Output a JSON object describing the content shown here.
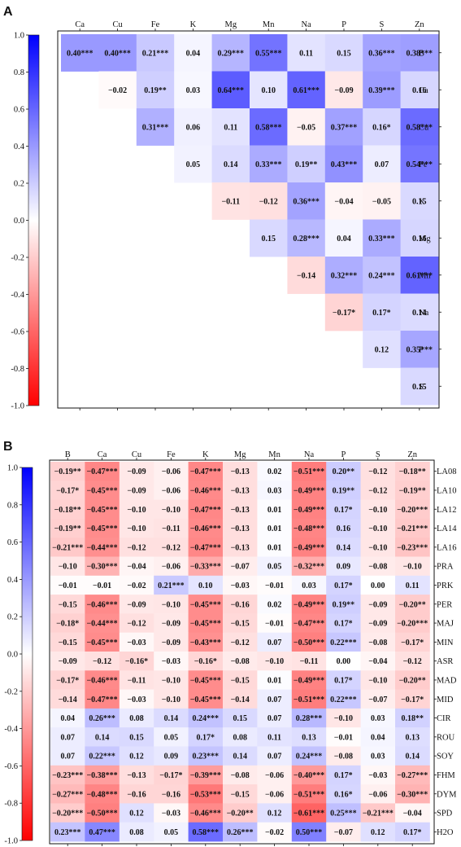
{
  "chart_data": [
    {
      "panel": "A",
      "type": "heatmap",
      "shape": "upper-triangle",
      "columns": [
        "Ca",
        "Cu",
        "Fe",
        "K",
        "Mg",
        "Mn",
        "Na",
        "P",
        "S",
        "Zn"
      ],
      "rows": [
        "B",
        "Ca",
        "Cu",
        "Fe",
        "K",
        "Mg",
        "Mn",
        "Na",
        "P",
        "S"
      ],
      "colorbar": {
        "min": -1.0,
        "max": 1.0,
        "ticks": [
          "1.0",
          "0.8",
          "0.6",
          "0.4",
          "0.2",
          "0.0",
          "-0.2",
          "-0.4",
          "-0.6",
          "-0.8",
          "-1.0"
        ],
        "colors": {
          "low": "#ff0000",
          "mid": "#ffffff",
          "high": "#0000ff"
        }
      },
      "values": [
        [
          0.4,
          0.4,
          0.21,
          0.04,
          0.29,
          0.55,
          0.11,
          0.15,
          0.36,
          0.38
        ],
        [
          null,
          -0.02,
          0.19,
          0.03,
          0.64,
          0.1,
          0.61,
          -0.09,
          0.39,
          0.16
        ],
        [
          null,
          null,
          0.31,
          0.06,
          0.11,
          0.58,
          -0.05,
          0.37,
          0.16,
          0.58
        ],
        [
          null,
          null,
          null,
          0.05,
          0.14,
          0.33,
          0.19,
          0.43,
          0.07,
          0.54
        ],
        [
          null,
          null,
          null,
          null,
          -0.11,
          -0.12,
          0.36,
          -0.04,
          -0.05,
          0.15
        ],
        [
          null,
          null,
          null,
          null,
          null,
          0.15,
          0.28,
          0.04,
          0.33,
          0.16
        ],
        [
          null,
          null,
          null,
          null,
          null,
          null,
          -0.14,
          0.32,
          0.24,
          0.61
        ],
        [
          null,
          null,
          null,
          null,
          null,
          null,
          null,
          -0.17,
          0.17,
          0.14
        ],
        [
          null,
          null,
          null,
          null,
          null,
          null,
          null,
          null,
          0.12,
          0.35
        ],
        [
          null,
          null,
          null,
          null,
          null,
          null,
          null,
          null,
          null,
          0.15
        ]
      ],
      "labels": [
        [
          "0.40***",
          "0.40***",
          "0.21***",
          "0.04",
          "0.29***",
          "0.55***",
          "0.11",
          "0.15",
          "0.36***",
          "0.38***"
        ],
        [
          "",
          "−0.02",
          "0.19**",
          "0.03",
          "0.64***",
          "0.10",
          "0.61***",
          "−0.09",
          "0.39***",
          "0.16"
        ],
        [
          "",
          "",
          "0.31***",
          "0.06",
          "0.11",
          "0.58***",
          "−0.05",
          "0.37***",
          "0.16*",
          "0.58***"
        ],
        [
          "",
          "",
          "",
          "0.05",
          "0.14",
          "0.33***",
          "0.19**",
          "0.43***",
          "0.07",
          "0.54***"
        ],
        [
          "",
          "",
          "",
          "",
          "−0.11",
          "−0.12",
          "0.36***",
          "−0.04",
          "−0.05",
          "0.15"
        ],
        [
          "",
          "",
          "",
          "",
          "",
          "0.15",
          "0.28***",
          "0.04",
          "0.33***",
          "0.16"
        ],
        [
          "",
          "",
          "",
          "",
          "",
          "",
          "−0.14",
          "0.32***",
          "0.24***",
          "0.61***"
        ],
        [
          "",
          "",
          "",
          "",
          "",
          "",
          "",
          "−0.17*",
          "0.17*",
          "0.14"
        ],
        [
          "",
          "",
          "",
          "",
          "",
          "",
          "",
          "",
          "0.12",
          "0.35***"
        ],
        [
          "",
          "",
          "",
          "",
          "",
          "",
          "",
          "",
          "",
          "0.15"
        ]
      ]
    },
    {
      "panel": "B",
      "type": "heatmap",
      "shape": "full",
      "columns": [
        "B",
        "Ca",
        "Cu",
        "Fe",
        "K",
        "Mg",
        "Mn",
        "Na",
        "P",
        "S",
        "Zn"
      ],
      "rows": [
        "LA08",
        "LA10",
        "LA12",
        "LA14",
        "LA16",
        "PRA",
        "PRK",
        "PER",
        "MAJ",
        "MIN",
        "ASR",
        "MAD",
        "MID",
        "CIR",
        "ROU",
        "SOY",
        "FHM",
        "DYM",
        "SPD",
        "H2O"
      ],
      "colorbar": {
        "min": -1.0,
        "max": 1.0,
        "ticks": [
          "1.0",
          "0.8",
          "0.6",
          "0.4",
          "0.2",
          "0.0",
          "-0.2",
          "-0.4",
          "-0.6",
          "-0.8",
          "-1.0"
        ],
        "colors": {
          "low": "#ff0000",
          "mid": "#ffffff",
          "high": "#0000ff"
        }
      },
      "values": [
        [
          -0.19,
          -0.47,
          -0.09,
          -0.06,
          -0.47,
          -0.13,
          0.02,
          -0.51,
          0.2,
          -0.12,
          -0.18
        ],
        [
          -0.17,
          -0.45,
          -0.09,
          -0.06,
          -0.46,
          -0.13,
          0.03,
          -0.49,
          0.19,
          -0.12,
          -0.19
        ],
        [
          -0.18,
          -0.45,
          -0.1,
          -0.1,
          -0.47,
          -0.13,
          0.01,
          -0.49,
          0.17,
          -0.1,
          -0.2
        ],
        [
          -0.19,
          -0.45,
          -0.1,
          -0.11,
          -0.46,
          -0.13,
          0.01,
          -0.48,
          0.16,
          -0.1,
          -0.21
        ],
        [
          -0.21,
          -0.44,
          -0.12,
          -0.12,
          -0.47,
          -0.13,
          0.01,
          -0.49,
          0.14,
          -0.1,
          -0.23
        ],
        [
          -0.1,
          -0.3,
          -0.04,
          -0.06,
          -0.33,
          -0.07,
          0.05,
          -0.32,
          0.09,
          -0.08,
          -0.1
        ],
        [
          -0.01,
          -0.01,
          -0.02,
          0.21,
          0.1,
          -0.03,
          -0.01,
          0.03,
          0.17,
          0.0,
          0.11
        ],
        [
          -0.15,
          -0.46,
          -0.09,
          -0.1,
          -0.45,
          -0.16,
          0.02,
          -0.49,
          0.19,
          -0.09,
          -0.2
        ],
        [
          -0.18,
          -0.44,
          -0.12,
          -0.09,
          -0.45,
          -0.15,
          -0.01,
          -0.47,
          0.17,
          -0.09,
          -0.2
        ],
        [
          -0.15,
          -0.45,
          -0.03,
          -0.09,
          -0.43,
          -0.12,
          0.07,
          -0.5,
          0.22,
          -0.08,
          -0.17
        ],
        [
          -0.09,
          -0.12,
          -0.16,
          -0.03,
          -0.16,
          -0.08,
          -0.1,
          -0.11,
          0.0,
          -0.04,
          -0.12
        ],
        [
          -0.17,
          -0.46,
          -0.11,
          -0.1,
          -0.45,
          -0.15,
          0.01,
          -0.49,
          0.17,
          -0.1,
          -0.2
        ],
        [
          -0.14,
          -0.47,
          -0.03,
          -0.1,
          -0.45,
          -0.14,
          0.07,
          -0.51,
          0.22,
          -0.07,
          -0.17
        ],
        [
          0.04,
          0.26,
          0.08,
          0.14,
          0.24,
          0.15,
          0.07,
          0.28,
          -0.1,
          0.03,
          0.18
        ],
        [
          0.07,
          0.14,
          0.15,
          0.05,
          0.17,
          0.08,
          0.11,
          0.13,
          -0.01,
          0.04,
          0.13
        ],
        [
          0.07,
          0.22,
          0.12,
          0.09,
          0.23,
          0.14,
          0.07,
          0.24,
          -0.08,
          0.03,
          0.14
        ],
        [
          -0.23,
          -0.38,
          -0.13,
          -0.17,
          -0.39,
          -0.08,
          -0.06,
          -0.4,
          0.17,
          -0.03,
          -0.27
        ],
        [
          -0.27,
          -0.48,
          -0.16,
          -0.16,
          -0.53,
          -0.15,
          -0.06,
          -0.51,
          0.16,
          -0.06,
          -0.3
        ],
        [
          -0.2,
          -0.5,
          0.12,
          -0.03,
          -0.46,
          -0.2,
          0.12,
          -0.61,
          0.25,
          -0.21,
          -0.04
        ],
        [
          0.23,
          0.47,
          0.08,
          0.05,
          0.58,
          0.26,
          -0.02,
          0.5,
          -0.07,
          0.12,
          0.17
        ]
      ],
      "labels": [
        [
          "−0.19**",
          "−0.47***",
          "−0.09",
          "−0.06",
          "−0.47***",
          "−0.13",
          "0.02",
          "−0.51***",
          "0.20**",
          "−0.12",
          "−0.18**"
        ],
        [
          "−0.17*",
          "−0.45***",
          "−0.09",
          "−0.06",
          "−0.46***",
          "−0.13",
          "0.03",
          "−0.49***",
          "0.19**",
          "−0.12",
          "−0.19**"
        ],
        [
          "−0.18**",
          "−0.45***",
          "−0.10",
          "−0.10",
          "−0.47***",
          "−0.13",
          "0.01",
          "−0.49***",
          "0.17*",
          "−0.10",
          "−0.20***"
        ],
        [
          "−0.19**",
          "−0.45***",
          "−0.10",
          "−0.11",
          "−0.46***",
          "−0.13",
          "0.01",
          "−0.48***",
          "0.16",
          "−0.10",
          "−0.21***"
        ],
        [
          "−0.21***",
          "−0.44***",
          "−0.12",
          "−0.12",
          "−0.47***",
          "−0.13",
          "0.01",
          "−0.49***",
          "0.14",
          "−0.10",
          "−0.23***"
        ],
        [
          "−0.10",
          "−0.30***",
          "−0.04",
          "−0.06",
          "−0.33***",
          "−0.07",
          "0.05",
          "−0.32***",
          "0.09",
          "−0.08",
          "−0.10"
        ],
        [
          "−0.01",
          "−0.01",
          "−0.02",
          "0.21***",
          "0.10",
          "−0.03",
          "−0.01",
          "0.03",
          "0.17*",
          "0.00",
          "0.11"
        ],
        [
          "−0.15",
          "−0.46***",
          "−0.09",
          "−0.10",
          "−0.45***",
          "−0.16",
          "0.02",
          "−0.49***",
          "0.19**",
          "−0.09",
          "−0.20**"
        ],
        [
          "−0.18*",
          "−0.44***",
          "−0.12",
          "−0.09",
          "−0.45***",
          "−0.15",
          "−0.01",
          "−0.47***",
          "0.17*",
          "−0.09",
          "−0.20***"
        ],
        [
          "−0.15",
          "−0.45***",
          "−0.03",
          "−0.09",
          "−0.43***",
          "−0.12",
          "0.07",
          "−0.50***",
          "0.22***",
          "−0.08",
          "−0.17*"
        ],
        [
          "−0.09",
          "−0.12",
          "−0.16*",
          "−0.03",
          "−0.16*",
          "−0.08",
          "−0.10",
          "−0.11",
          "0.00",
          "−0.04",
          "−0.12"
        ],
        [
          "−0.17*",
          "−0.46***",
          "−0.11",
          "−0.10",
          "−0.45***",
          "−0.15",
          "0.01",
          "−0.49***",
          "0.17*",
          "−0.10",
          "−0.20**"
        ],
        [
          "−0.14",
          "−0.47***",
          "−0.03",
          "−0.10",
          "−0.45***",
          "−0.14",
          "0.07",
          "−0.51***",
          "0.22***",
          "−0.07",
          "−0.17*"
        ],
        [
          "0.04",
          "0.26***",
          "0.08",
          "0.14",
          "0.24***",
          "0.15",
          "0.07",
          "0.28***",
          "−0.10",
          "0.03",
          "0.18**"
        ],
        [
          "0.07",
          "0.14",
          "0.15",
          "0.05",
          "0.17*",
          "0.08",
          "0.11",
          "0.13",
          "−0.01",
          "0.04",
          "0.13"
        ],
        [
          "0.07",
          "0.22***",
          "0.12",
          "0.09",
          "0.23***",
          "0.14",
          "0.07",
          "0.24***",
          "−0.08",
          "0.03",
          "0.14"
        ],
        [
          "−0.23***",
          "−0.38***",
          "−0.13",
          "−0.17*",
          "−0.39***",
          "−0.08",
          "−0.06",
          "−0.40***",
          "0.17*",
          "−0.03",
          "−0.27***"
        ],
        [
          "−0.27***",
          "−0.48***",
          "−0.16",
          "−0.16",
          "−0.53***",
          "−0.15",
          "−0.06",
          "−0.51***",
          "0.16*",
          "−0.06",
          "−0.30***"
        ],
        [
          "−0.20***",
          "−0.50***",
          "0.12",
          "−0.03",
          "−0.46***",
          "−0.20**",
          "0.12",
          "−0.61***",
          "0.25***",
          "−0.21***",
          "−0.04"
        ],
        [
          "0.23***",
          "0.47***",
          "0.08",
          "0.05",
          "0.58***",
          "0.26***",
          "−0.02",
          "0.50***",
          "−0.07",
          "0.12",
          "0.17*"
        ]
      ]
    }
  ]
}
